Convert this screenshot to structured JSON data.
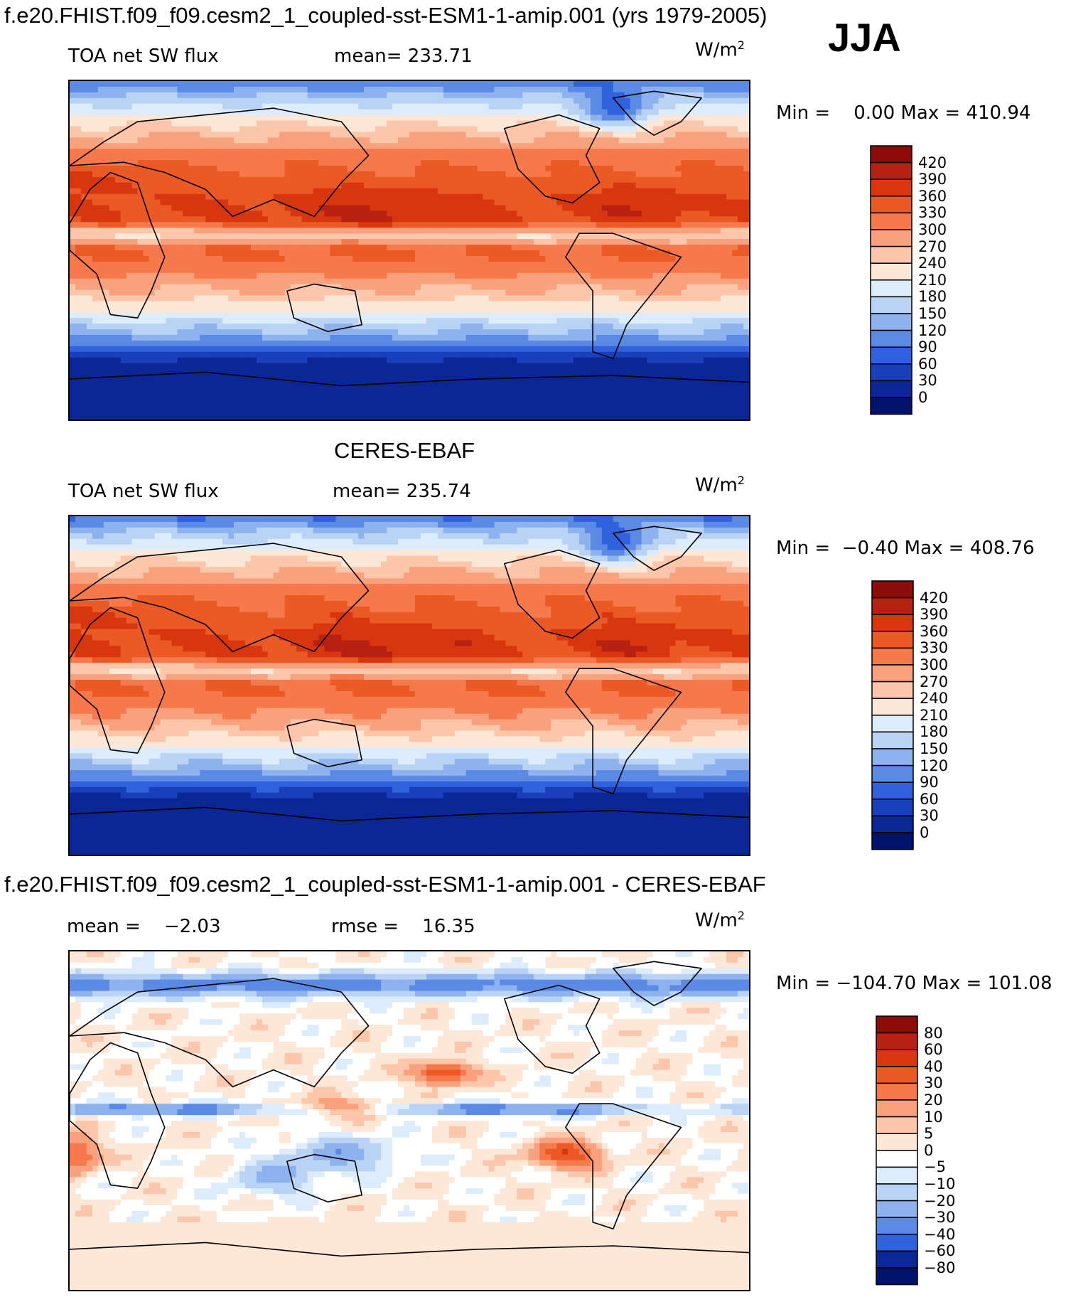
{
  "header": {
    "title": "f.e20.FHIST.f09_f09.cesm2_1_coupled-sst-ESM1-1-amip.001 (yrs 1979-2005)",
    "season": "JJA"
  },
  "panels": [
    {
      "title": "",
      "variable": "TOA net SW flux",
      "stat": "mean= 233.71",
      "units": "W/m",
      "units_sup": "2",
      "minmax": "Min =    0.00 Max = 410.94",
      "cbar_labels": [
        "420",
        "390",
        "360",
        "330",
        "300",
        "270",
        "240",
        "210",
        "180",
        "150",
        "120",
        "90",
        "60",
        "30",
        "0"
      ],
      "cbar_colors": [
        "#8b0c08",
        "#b82012",
        "#d8360f",
        "#eb5a24",
        "#f5794a",
        "#f9a07c",
        "#fbc6aa",
        "#fde7d6",
        "#ddecfa",
        "#b9d3f5",
        "#8db2ee",
        "#5b8ae5",
        "#2f62dc",
        "#1a3fbb",
        "#0b2695",
        "#03126c"
      ]
    },
    {
      "title": "CERES-EBAF",
      "variable": "TOA net SW flux",
      "stat": "mean= 235.74",
      "units": "W/m",
      "units_sup": "2",
      "minmax": "Min =  −0.40 Max = 408.76",
      "cbar_labels": [
        "420",
        "390",
        "360",
        "330",
        "300",
        "270",
        "240",
        "210",
        "180",
        "150",
        "120",
        "90",
        "60",
        "30",
        "0"
      ],
      "cbar_colors": [
        "#8b0c08",
        "#b82012",
        "#d8360f",
        "#eb5a24",
        "#f5794a",
        "#f9a07c",
        "#fbc6aa",
        "#fde7d6",
        "#ddecfa",
        "#b9d3f5",
        "#8db2ee",
        "#5b8ae5",
        "#2f62dc",
        "#1a3fbb",
        "#0b2695",
        "#03126c"
      ]
    },
    {
      "title": "f.e20.FHIST.f09_f09.cesm2_1_coupled-sst-ESM1-1-amip.001 - CERES-EBAF",
      "variable": "mean =    −2.03",
      "stat": "rmse =    16.35",
      "units": "W/m",
      "units_sup": "2",
      "minmax": "Min = −104.70 Max = 101.08",
      "cbar_labels": [
        "80",
        "60",
        "40",
        "30",
        "20",
        "10",
        "5",
        "0",
        "−5",
        "−10",
        "−20",
        "−30",
        "−40",
        "−60",
        "−80"
      ],
      "cbar_colors": [
        "#8b0c08",
        "#b82012",
        "#d8360f",
        "#eb5a24",
        "#f5794a",
        "#f9a07c",
        "#fbc6aa",
        "#fde7d6",
        "#ffffff",
        "#ddecfa",
        "#b9d3f5",
        "#8db2ee",
        "#5b8ae5",
        "#2f62dc",
        "#0b2695",
        "#03126c"
      ]
    }
  ],
  "chart_data": [
    {
      "type": "heatmap",
      "title": "f.e20.FHIST.f09_f09.cesm2_1_coupled-sst-ESM1-1-amip.001 (yrs 1979-2005)",
      "subtitle": "TOA net SW flux",
      "season": "JJA",
      "mean": 233.71,
      "units": "W/m2",
      "min": 0.0,
      "max": 410.94,
      "contour_levels": [
        0,
        30,
        60,
        90,
        120,
        150,
        180,
        210,
        240,
        270,
        300,
        330,
        360,
        390,
        420
      ],
      "lon_range": [
        0,
        360
      ],
      "lat_range": [
        -90,
        90
      ]
    },
    {
      "type": "heatmap",
      "title": "CERES-EBAF",
      "subtitle": "TOA net SW flux",
      "season": "JJA",
      "mean": 235.74,
      "units": "W/m2",
      "min": -0.4,
      "max": 408.76,
      "contour_levels": [
        0,
        30,
        60,
        90,
        120,
        150,
        180,
        210,
        240,
        270,
        300,
        330,
        360,
        390,
        420
      ],
      "lon_range": [
        0,
        360
      ],
      "lat_range": [
        -90,
        90
      ]
    },
    {
      "type": "heatmap",
      "title": "f.e20.FHIST.f09_f09.cesm2_1_coupled-sst-ESM1-1-amip.001 - CERES-EBAF",
      "mean": -2.03,
      "rmse": 16.35,
      "units": "W/m2",
      "min": -104.7,
      "max": 101.08,
      "contour_levels": [
        -80,
        -60,
        -40,
        -30,
        -20,
        -10,
        -5,
        0,
        5,
        10,
        20,
        30,
        40,
        60,
        80
      ],
      "lon_range": [
        0,
        360
      ],
      "lat_range": [
        -90,
        90
      ]
    }
  ]
}
